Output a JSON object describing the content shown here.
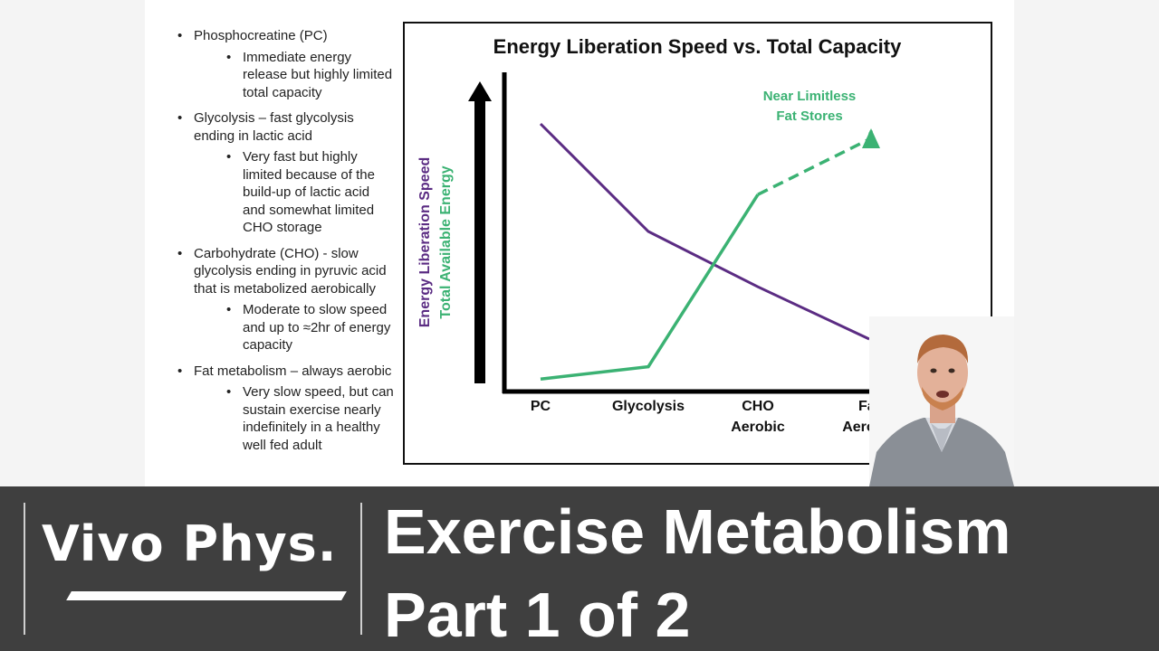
{
  "bullets": [
    {
      "text": "Phosphocreatine (PC)",
      "sub": [
        "Immediate energy release but highly limited total capacity"
      ]
    },
    {
      "text": "Glycolysis – fast glycolysis ending in lactic acid",
      "sub": [
        "Very fast but highly limited because of the build-up of lactic acid and somewhat limited CHO storage"
      ]
    },
    {
      "text": "Carbohydrate (CHO) - slow glycolysis ending in pyruvic acid that is metabolized aerobically",
      "sub": [
        "Moderate to slow speed and up to ≈2hr of energy capacity"
      ]
    },
    {
      "text": "Fat metabolism – always aerobic",
      "sub": [
        "Very slow speed, but can sustain exercise nearly indefinitely in a healthy well fed adult"
      ]
    }
  ],
  "chart_data": {
    "type": "line",
    "title": "Energy Liberation Speed vs. Total Capacity",
    "ylabel_speed": "Energy Liberation Speed",
    "ylabel_energy": "Total Available Energy",
    "categories": [
      "PC",
      "Glycolysis",
      "CHO\nAerobic",
      "Fat\nAerobic"
    ],
    "category_lines": [
      [
        "PC"
      ],
      [
        "Glycolysis"
      ],
      [
        "CHO",
        "Aerobic"
      ],
      [
        "Fat",
        "Aerobic"
      ]
    ],
    "series": [
      {
        "color": "#5b2c83",
        "values": [
          0.85,
          0.5,
          0.32,
          0.15
        ],
        "style": "solid"
      },
      {
        "color": "#3bb273",
        "values": [
          0.02,
          0.06,
          0.62,
          0.8
        ],
        "style": "solid-then-dashed",
        "dashed_from_index": 2
      }
    ],
    "annotation": [
      "Near Limitless",
      "Fat Stores"
    ],
    "grid": false,
    "colors": {
      "speed": "#5b2c83",
      "energy": "#3bb273",
      "axis": "#000000"
    }
  },
  "banner": {
    "logo": "Vivo Phys.",
    "title_line1": "Exercise Metabolism",
    "title_line2": "Part 1 of 2"
  }
}
